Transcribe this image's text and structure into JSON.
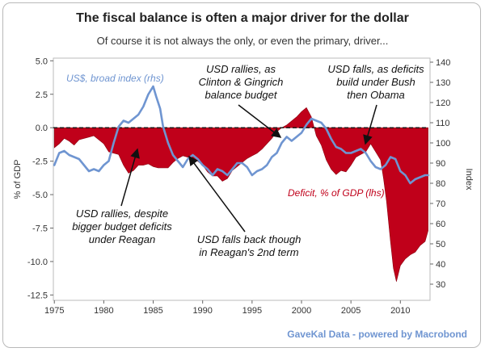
{
  "chart_data": {
    "type": "area",
    "title": "The fiscal balance is often a major driver for the dollar",
    "subtitle": "Of course it is not always the only, or even the primary, driver...",
    "source": "GaveKal Data - powered by Macrobond",
    "left_axis": {
      "label": "% of GDP",
      "range": [
        -12.9,
        5.2
      ],
      "tick_values": [
        5.0,
        2.5,
        0.0,
        -2.5,
        -5.0,
        -7.5,
        -10.0,
        -12.5
      ],
      "tick_labels": [
        "5.0",
        "2.5",
        "0.0",
        "-2.5",
        "-5.0",
        "-7.5",
        "-10.0",
        "-12.5"
      ]
    },
    "right_axis": {
      "label": "Index",
      "range": [
        22,
        142
      ],
      "tick_values": [
        140,
        130,
        120,
        110,
        100,
        90,
        80,
        70,
        60,
        50,
        40,
        30
      ],
      "tick_labels": [
        "140",
        "130",
        "120",
        "110",
        "100",
        "90",
        "80",
        "70",
        "60",
        "50",
        "40",
        "30"
      ]
    },
    "x_axis": {
      "range": [
        1974.9,
        2013.0
      ],
      "tick_values": [
        1975,
        1980,
        1985,
        1990,
        1995,
        2000,
        2005,
        2010
      ],
      "tick_labels": [
        "1975",
        "1980",
        "1985",
        "1990",
        "1995",
        "2000",
        "2005",
        "2010"
      ]
    },
    "series": [
      {
        "name": "US$, broad index (rhs)",
        "axis": "right",
        "color": "#6f95d1",
        "x": [
          1975.0,
          1975.5,
          1976.0,
          1976.5,
          1977.0,
          1977.5,
          1978.0,
          1978.5,
          1979.0,
          1979.5,
          1980.0,
          1980.5,
          1981.0,
          1981.5,
          1982.0,
          1982.5,
          1983.0,
          1983.5,
          1984.0,
          1984.5,
          1985.0,
          1985.3,
          1985.7,
          1986.0,
          1986.5,
          1987.0,
          1987.5,
          1988.0,
          1988.5,
          1989.0,
          1989.5,
          1990.0,
          1990.5,
          1991.0,
          1991.5,
          1992.0,
          1992.5,
          1993.0,
          1993.5,
          1994.0,
          1994.5,
          1995.0,
          1995.5,
          1996.0,
          1996.5,
          1997.0,
          1997.5,
          1998.0,
          1998.5,
          1999.0,
          1999.5,
          2000.0,
          2000.5,
          2001.0,
          2001.5,
          2002.0,
          2002.5,
          2003.0,
          2003.5,
          2004.0,
          2004.5,
          2005.0,
          2005.5,
          2006.0,
          2006.5,
          2007.0,
          2007.5,
          2008.0,
          2008.5,
          2009.0,
          2009.5,
          2010.0,
          2010.5,
          2011.0,
          2011.5,
          2012.0,
          2012.5,
          2012.8
        ],
        "y": [
          89,
          95,
          96,
          94,
          93,
          92,
          89,
          86,
          87,
          86,
          89,
          91,
          100,
          108,
          111,
          110,
          112,
          114,
          118,
          124,
          128,
          123,
          117,
          108,
          100,
          94,
          91,
          88,
          92,
          94,
          92,
          89,
          87,
          84,
          87,
          86,
          84,
          87,
          90,
          90,
          88,
          84,
          86,
          87,
          89,
          93,
          95,
          100,
          103,
          101,
          103,
          105,
          109,
          112,
          111,
          110,
          107,
          102,
          98,
          97,
          95,
          95,
          96,
          97,
          95,
          91,
          88,
          87,
          89,
          93,
          92,
          86,
          84,
          80,
          82,
          83,
          84,
          84
        ]
      },
      {
        "name": "Deficit, % of GDP (lhs)",
        "axis": "left",
        "color": "#c0001a",
        "x": [
          1975.0,
          1975.5,
          1976.0,
          1976.5,
          1977.0,
          1977.5,
          1978.0,
          1978.5,
          1979.0,
          1979.5,
          1980.0,
          1980.5,
          1981.0,
          1981.5,
          1982.0,
          1982.5,
          1983.0,
          1983.5,
          1984.0,
          1984.5,
          1985.0,
          1985.5,
          1986.0,
          1986.5,
          1987.0,
          1987.5,
          1988.0,
          1988.5,
          1989.0,
          1989.5,
          1990.0,
          1990.5,
          1991.0,
          1991.5,
          1992.0,
          1992.5,
          1993.0,
          1993.5,
          1994.0,
          1994.5,
          1995.0,
          1995.5,
          1996.0,
          1996.5,
          1997.0,
          1997.5,
          1998.0,
          1998.5,
          1999.0,
          1999.5,
          2000.0,
          2000.5,
          2001.0,
          2001.5,
          2002.0,
          2002.5,
          2003.0,
          2003.5,
          2004.0,
          2004.5,
          2005.0,
          2005.5,
          2006.0,
          2006.5,
          2007.0,
          2007.5,
          2008.0,
          2008.3,
          2008.6,
          2009.0,
          2009.3,
          2009.6,
          2010.0,
          2010.5,
          2011.0,
          2011.5,
          2012.0,
          2012.5,
          2012.8
        ],
        "y": [
          -1.5,
          -1.2,
          -0.8,
          -1.0,
          -1.3,
          -0.9,
          -0.8,
          -0.7,
          -0.6,
          -0.9,
          -1.2,
          -1.8,
          -1.9,
          -2.0,
          -2.8,
          -3.4,
          -3.2,
          -2.8,
          -2.8,
          -2.7,
          -2.9,
          -3.0,
          -3.0,
          -3.0,
          -2.6,
          -2.3,
          -2.1,
          -2.2,
          -2.3,
          -2.5,
          -2.8,
          -3.3,
          -3.6,
          -3.6,
          -4.0,
          -3.8,
          -3.2,
          -2.9,
          -2.6,
          -2.3,
          -2.1,
          -1.9,
          -1.6,
          -1.2,
          -0.8,
          -0.3,
          0.0,
          0.2,
          0.5,
          0.8,
          1.2,
          1.5,
          0.8,
          -0.6,
          -1.3,
          -2.4,
          -3.1,
          -3.5,
          -3.2,
          -3.3,
          -2.8,
          -2.2,
          -2.0,
          -1.8,
          -1.2,
          -1.8,
          -2.4,
          -3.8,
          -5.5,
          -8.5,
          -10.5,
          -11.5,
          -10.3,
          -9.8,
          -9.5,
          -9.3,
          -8.8,
          -8.5,
          -7.7
        ]
      }
    ],
    "zero_line": "dashed",
    "legend": [
      {
        "text": "US$, broad index (rhs)",
        "color": "#6f95d1",
        "placement": "top-left"
      },
      {
        "text": "Deficit, % of GDP (lhs)",
        "color": "#c0001a",
        "placement": "center-right"
      }
    ],
    "annotations": [
      {
        "lines": [
          "USD rallies, despite",
          "bigger budget deficits",
          "under Reagan"
        ]
      },
      {
        "lines": [
          "USD falls back though",
          "in Reagan's 2nd term"
        ]
      },
      {
        "lines": [
          "USD rallies, as",
          "Clinton & Gingrich",
          "balance budget"
        ]
      },
      {
        "lines": [
          "USD falls, as deficits",
          "build under Bush",
          "then Obama"
        ]
      }
    ]
  }
}
